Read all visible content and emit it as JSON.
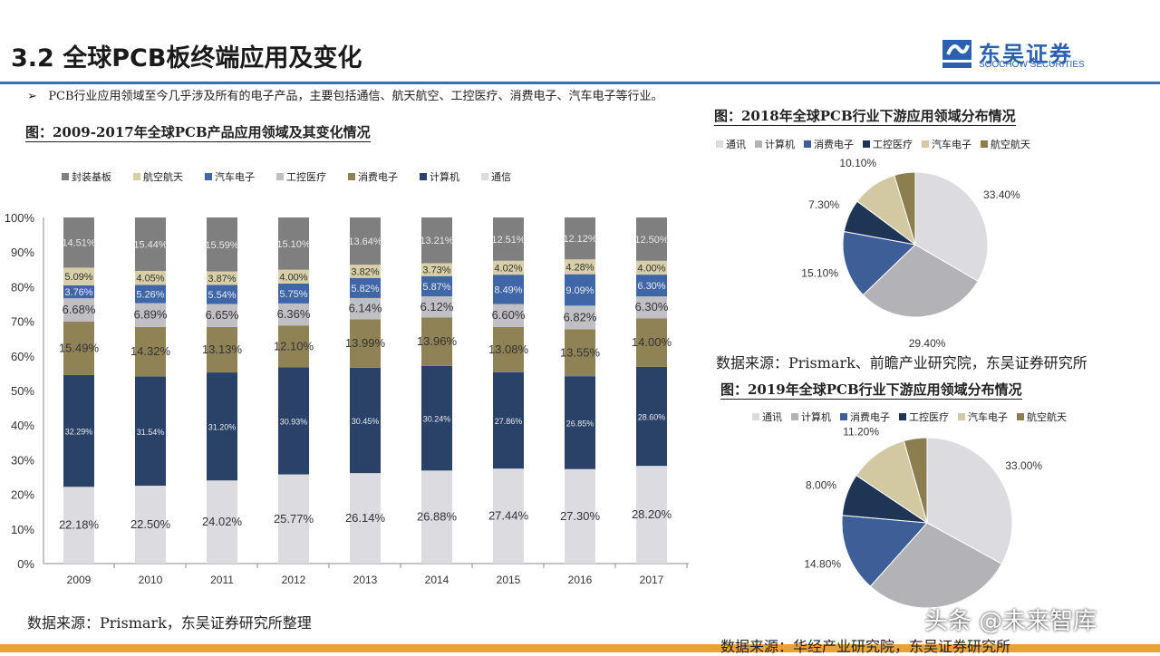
{
  "header": {
    "title": "3.2 全球PCB板终端应用及变化",
    "logo_cn": "东吴证券",
    "logo_en": "SOOCHOW SECURITIES",
    "logo_mark": "SCS"
  },
  "bullet": {
    "marker": "➢",
    "text": "PCB行业应用领域至今几乎涉及所有的电子产品，主要包括通信、航天航空、工控医疗、消费电子、汽车电子等行业。"
  },
  "left": {
    "caption": "图：2009-2017年全球PCB产品应用领域及其变化情况",
    "source": "数据来源：Prismark，东吴证券研究所整理"
  },
  "right": {
    "caption1": "图：2018年全球PCB行业下游应用领域分布情况",
    "source1": "数据来源：Prismark、前瞻产业研究院，东吴证券研究所",
    "caption2": "图：2019年全球PCB行业下游应用领域分布情况",
    "source2": "数据来源：华经产业研究院，东吴证券研究所"
  },
  "watermark": "头条 @未来智库",
  "chart_data": [
    {
      "type": "bar",
      "stacked": true,
      "title": "2009-2017年全球PCB产品应用领域及其变化情况",
      "ylim": [
        0,
        100
      ],
      "yticks": [
        "0%",
        "10%",
        "20%",
        "30%",
        "40%",
        "50%",
        "60%",
        "70%",
        "80%",
        "90%",
        "100%"
      ],
      "legend": "top",
      "categories": [
        "2009",
        "2010",
        "2011",
        "2012",
        "2013",
        "2014",
        "2015",
        "2016",
        "2017"
      ],
      "series": [
        {
          "name": "通信",
          "color": "#dcdce0",
          "values": [
            22.18,
            22.5,
            24.02,
            25.77,
            26.14,
            26.88,
            27.44,
            27.3,
            28.2
          ],
          "labels": [
            "22.18%",
            "22.50%",
            "24.02%",
            "25.77%",
            "26.14%",
            "26.88%",
            "27.44%",
            "27.30%",
            "28.20%"
          ]
        },
        {
          "name": "计算机",
          "color": "#2b4268",
          "values": [
            32.29,
            31.54,
            31.2,
            30.93,
            30.45,
            30.24,
            27.86,
            26.85,
            28.6
          ],
          "labels": [
            "32.29%",
            "31.54%",
            "31.20%",
            "30.93%",
            "30.45%",
            "30.24%",
            "27.86%",
            "26.85%",
            "28.60%"
          ]
        },
        {
          "name": "消费电子",
          "color": "#8f8255",
          "values": [
            15.49,
            14.32,
            13.13,
            12.1,
            13.99,
            13.96,
            13.08,
            13.55,
            14.0
          ],
          "labels": [
            "15.49%",
            "14.32%",
            "13.13%",
            "12.10%",
            "13.99%",
            "13.96%",
            "13.08%",
            "13.55%",
            "14.00%"
          ]
        },
        {
          "name": "工控医疗",
          "color": "#c0c0c4",
          "values": [
            6.68,
            6.89,
            6.65,
            6.36,
            6.14,
            6.12,
            6.6,
            6.82,
            6.3
          ],
          "labels": [
            "6.68%",
            "6.89%",
            "6.65%",
            "6.36%",
            "6.14%",
            "6.12%",
            "6.60%",
            "6.82%",
            "6.30%"
          ]
        },
        {
          "name": "汽车电子",
          "color": "#3f67a8",
          "values": [
            3.76,
            5.26,
            5.54,
            5.75,
            5.82,
            5.87,
            8.49,
            9.09,
            6.3
          ],
          "labels": [
            "3.76%",
            "5.26%",
            "5.54%",
            "5.75%",
            "5.82%",
            "5.87%",
            "8.49%",
            "9.09%",
            "6.30%"
          ]
        },
        {
          "name": "航空航天",
          "color": "#d8cfa8",
          "values": [
            5.09,
            4.05,
            3.87,
            4.0,
            3.82,
            3.73,
            4.02,
            4.28,
            4.0
          ],
          "labels": [
            "5.09%",
            "4.05%",
            "3.87%",
            "4.00%",
            "3.82%",
            "3.73%",
            "4.02%",
            "4.28%",
            "4.00%"
          ]
        },
        {
          "name": "封装基板",
          "color": "#7f7f7f",
          "values": [
            14.51,
            15.44,
            15.59,
            15.1,
            13.64,
            13.21,
            12.51,
            12.12,
            12.5
          ],
          "labels": [
            "14.51%",
            "15.44%",
            "15.59%",
            "15.10%",
            "13.64%",
            "13.21%",
            "12.51%",
            "12.12%",
            "12.50%"
          ]
        }
      ],
      "legend_order": [
        "封装基板",
        "航空航天",
        "汽车电子",
        "工控医疗",
        "消费电子",
        "计算机",
        "通信"
      ]
    },
    {
      "type": "pie",
      "title": "2018年全球PCB行业下游应用领域分布情况",
      "legend": "top",
      "slices": [
        {
          "name": "通讯",
          "value": 33.4,
          "label": "33.40%",
          "color": "#dcdce0"
        },
        {
          "name": "计算机",
          "value": 29.4,
          "label": "29.40%",
          "color": "#b3b3b7"
        },
        {
          "name": "消费电子",
          "value": 15.1,
          "label": "15.10%",
          "color": "#3d5e96"
        },
        {
          "name": "工控医疗",
          "value": 7.3,
          "label": "7.30%",
          "color": "#1f3556"
        },
        {
          "name": "汽车电子",
          "value": 10.1,
          "label": "10.10%",
          "color": "#d2c9a3"
        },
        {
          "name": "航空航天",
          "value": 4.7,
          "label": "4.70%",
          "color": "#8c7e4f"
        }
      ]
    },
    {
      "type": "pie",
      "title": "2019年全球PCB行业下游应用领域分布情况",
      "legend": "top",
      "slices": [
        {
          "name": "通讯",
          "value": 33.0,
          "label": "33.00%",
          "color": "#dcdce0"
        },
        {
          "name": "计算机",
          "value": 28.6,
          "label": "",
          "color": "#b3b3b7"
        },
        {
          "name": "消费电子",
          "value": 14.8,
          "label": "14.80%",
          "color": "#3d5e96"
        },
        {
          "name": "工控医疗",
          "value": 8.0,
          "label": "8.00%",
          "color": "#1f3556"
        },
        {
          "name": "汽车电子",
          "value": 11.2,
          "label": "11.20%",
          "color": "#d2c9a3"
        },
        {
          "name": "航空航天",
          "value": 4.4,
          "label": "4.40%",
          "color": "#8c7e4f"
        }
      ]
    }
  ]
}
